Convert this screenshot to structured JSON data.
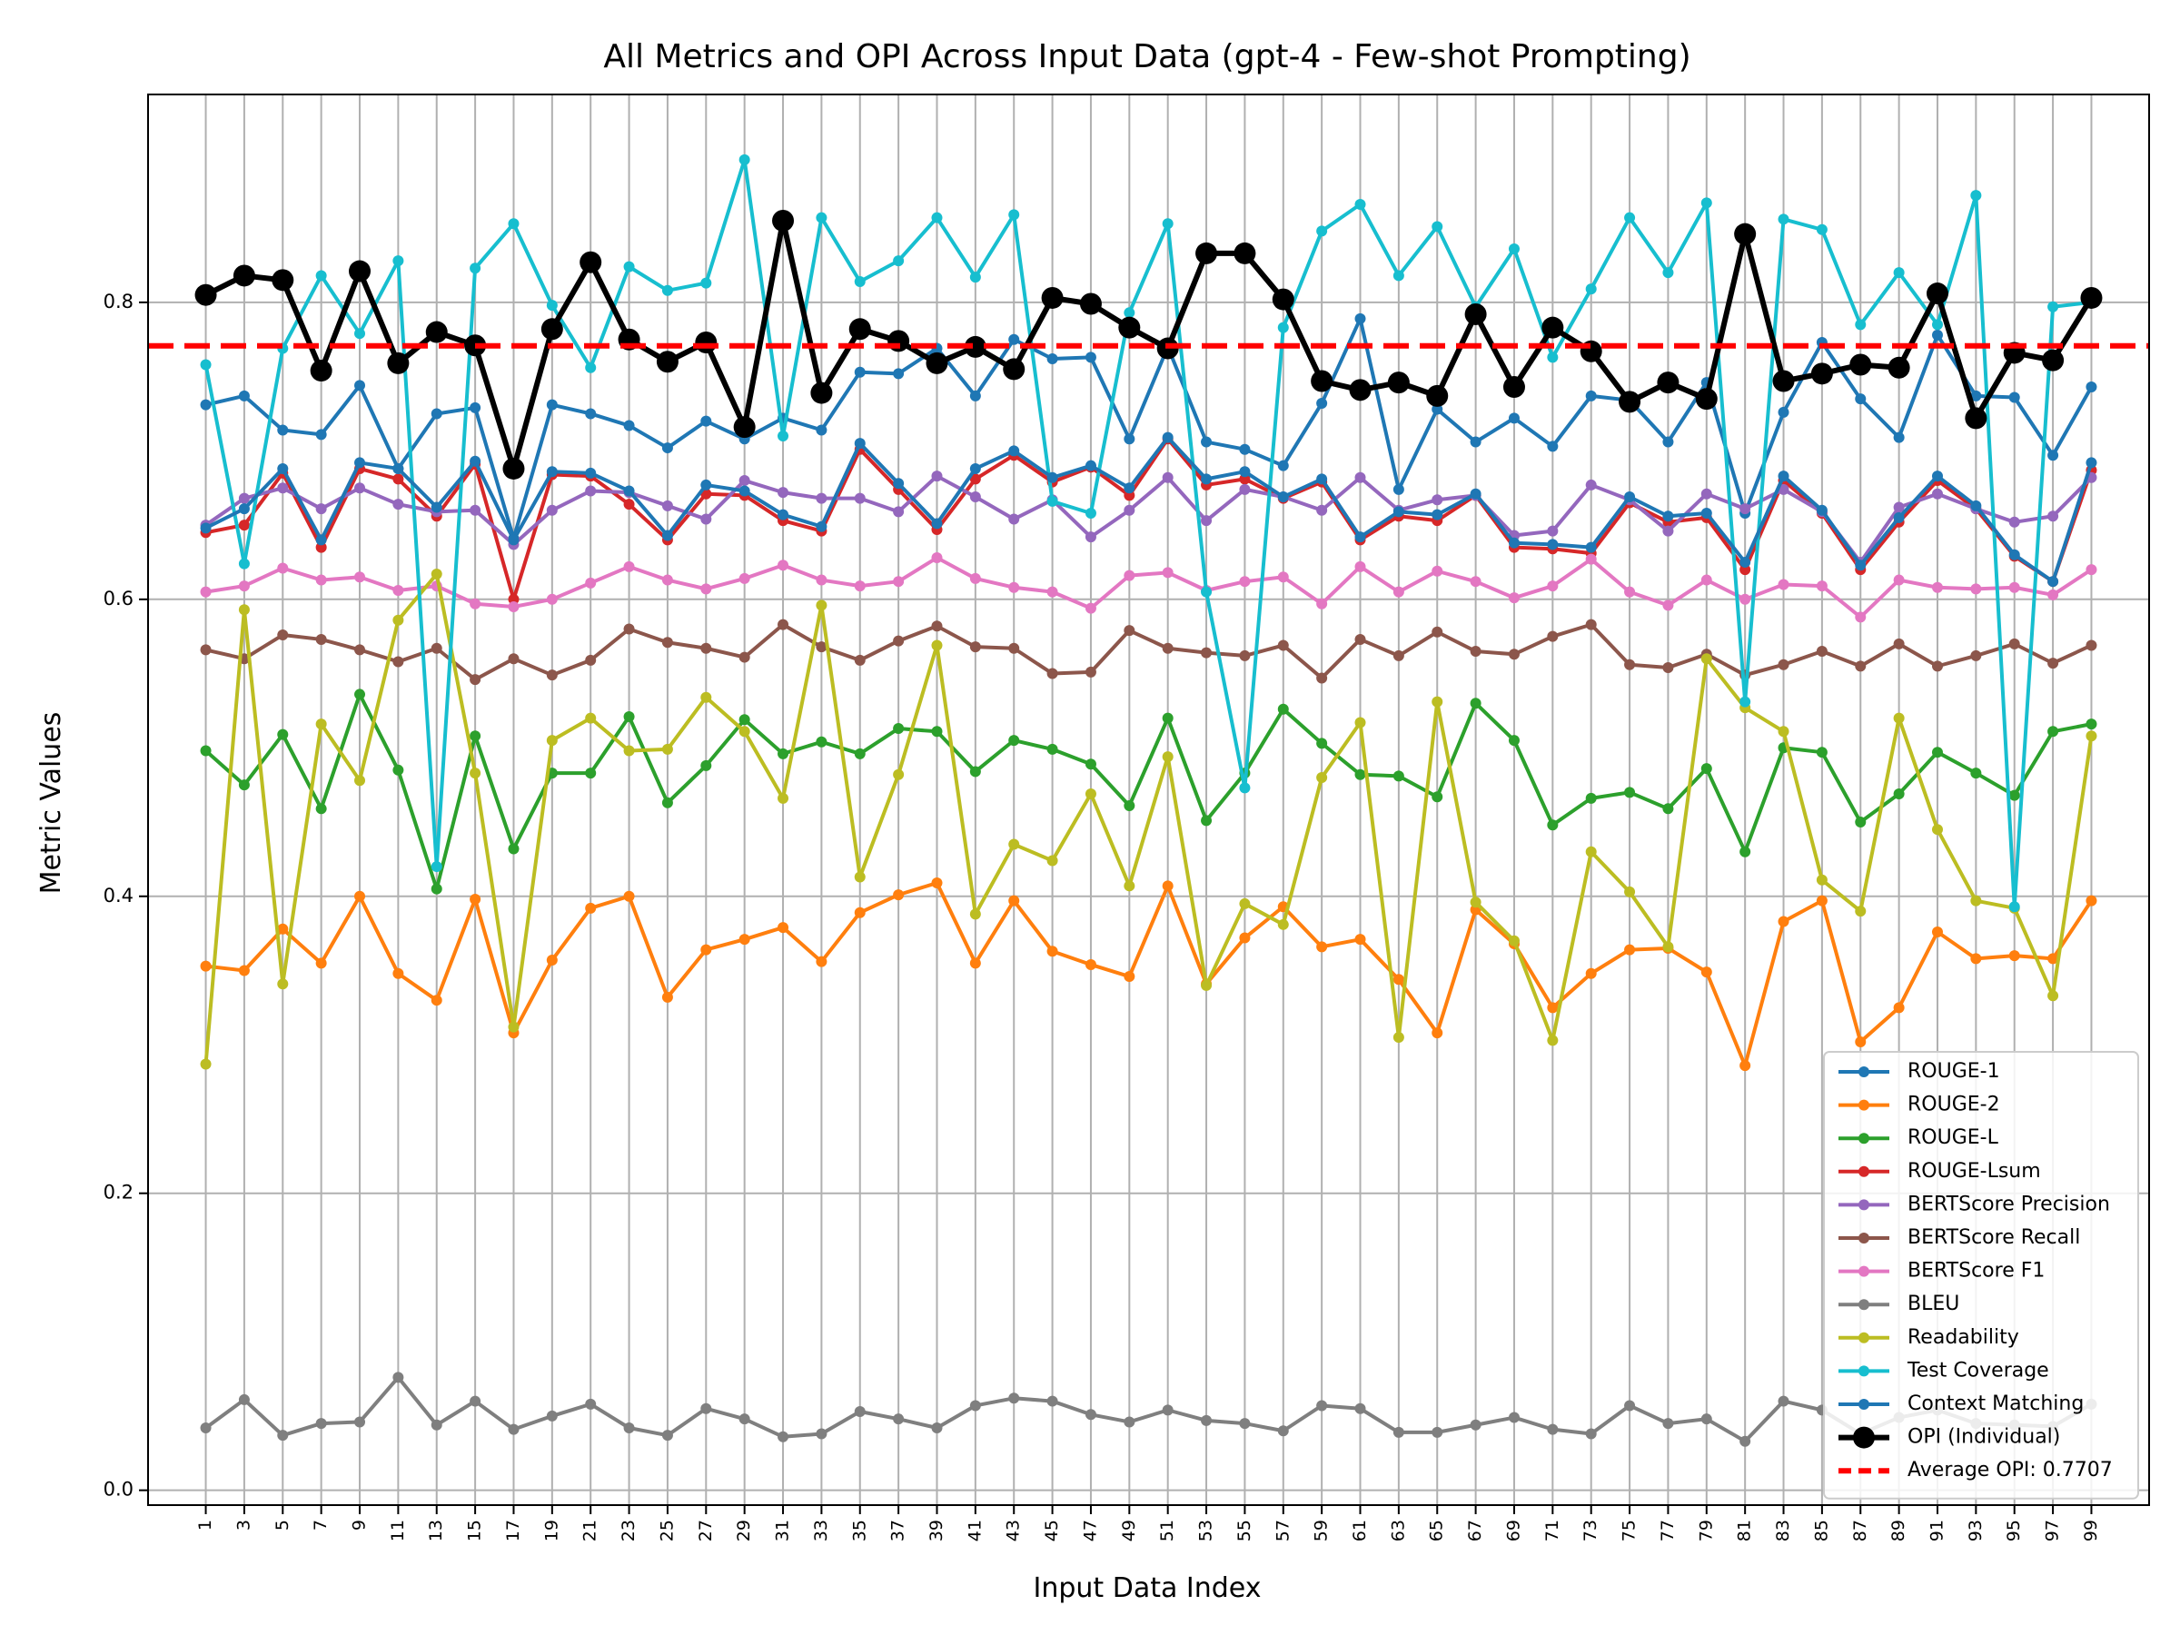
{
  "chart_data": {
    "type": "line",
    "title": "All Metrics and OPI Across Input Data (gpt-4 - Few-shot Prompting)",
    "xlabel": "Input Data Index",
    "ylabel": "Metric Values",
    "xlim": [
      -1.5,
      50.5
    ],
    "ylim": [
      -0.01,
      0.94
    ],
    "yticks": [
      0.0,
      0.2,
      0.4,
      0.6,
      0.8
    ],
    "ytick_labels": [
      "0.0",
      "0.2",
      "0.4",
      "0.6",
      "0.8"
    ],
    "categories": [
      "1",
      "3",
      "5",
      "7",
      "9",
      "11",
      "13",
      "15",
      "17",
      "19",
      "21",
      "23",
      "25",
      "27",
      "29",
      "31",
      "33",
      "35",
      "37",
      "39",
      "41",
      "43",
      "45",
      "47",
      "49",
      "51",
      "53",
      "55",
      "57",
      "59",
      "61",
      "63",
      "65",
      "67",
      "69",
      "71",
      "73",
      "75",
      "77",
      "79",
      "81",
      "83",
      "85",
      "87",
      "89",
      "91",
      "93",
      "95",
      "97",
      "99"
    ],
    "grid": true,
    "legend_position": "lower-right",
    "series": [
      {
        "name": "ROUGE-1",
        "color": "#1f77b4",
        "values": [
          0.731,
          0.737,
          0.714,
          0.711,
          0.744,
          0.688,
          0.725,
          0.729,
          0.641,
          0.731,
          0.725,
          0.717,
          0.702,
          0.72,
          0.708,
          0.722,
          0.714,
          0.753,
          0.752,
          0.769,
          0.737,
          0.775,
          0.762,
          0.763,
          0.708,
          0.77,
          0.706,
          0.701,
          0.69,
          0.732,
          0.789,
          0.674,
          0.728,
          0.706,
          0.722,
          0.703,
          0.737,
          0.734,
          0.706,
          0.746,
          0.658,
          0.726,
          0.773,
          0.735,
          0.709,
          0.778,
          0.737,
          0.736,
          0.697,
          0.743
        ]
      },
      {
        "name": "ROUGE-2",
        "color": "#ff7f0e",
        "values": [
          0.353,
          0.35,
          0.378,
          0.355,
          0.4,
          0.348,
          0.33,
          0.398,
          0.308,
          0.357,
          0.392,
          0.4,
          0.332,
          0.364,
          0.371,
          0.379,
          0.356,
          0.389,
          0.401,
          0.409,
          0.355,
          0.397,
          0.363,
          0.354,
          0.346,
          0.407,
          0.341,
          0.372,
          0.393,
          0.366,
          0.371,
          0.344,
          0.308,
          0.391,
          0.368,
          0.325,
          0.348,
          0.364,
          0.365,
          0.349,
          0.286,
          0.383,
          0.397,
          0.302,
          0.325,
          0.376,
          0.358,
          0.36,
          0.358,
          0.397
        ]
      },
      {
        "name": "ROUGE-L",
        "color": "#2ca02c",
        "values": [
          0.498,
          0.475,
          0.509,
          0.459,
          0.536,
          0.485,
          0.405,
          0.508,
          0.432,
          0.483,
          0.483,
          0.521,
          0.463,
          0.488,
          0.519,
          0.496,
          0.504,
          0.496,
          0.513,
          0.511,
          0.484,
          0.505,
          0.499,
          0.489,
          0.461,
          0.52,
          0.451,
          0.483,
          0.526,
          0.503,
          0.482,
          0.481,
          0.467,
          0.53,
          0.505,
          0.448,
          0.466,
          0.47,
          0.459,
          0.486,
          0.43,
          0.5,
          0.497,
          0.45,
          0.469,
          0.497,
          0.483,
          0.468,
          0.511,
          0.516
        ]
      },
      {
        "name": "ROUGE-Lsum",
        "color": "#d62728",
        "values": [
          0.645,
          0.65,
          0.685,
          0.635,
          0.688,
          0.681,
          0.656,
          0.691,
          0.6,
          0.684,
          0.683,
          0.664,
          0.64,
          0.671,
          0.67,
          0.653,
          0.646,
          0.701,
          0.674,
          0.647,
          0.681,
          0.697,
          0.679,
          0.689,
          0.67,
          0.708,
          0.677,
          0.681,
          0.668,
          0.679,
          0.64,
          0.656,
          0.653,
          0.67,
          0.635,
          0.634,
          0.631,
          0.665,
          0.652,
          0.655,
          0.62,
          0.68,
          0.658,
          0.62,
          0.652,
          0.68,
          0.661,
          0.629,
          0.612,
          0.687
        ]
      },
      {
        "name": "BERTScore Precision",
        "color": "#9467bd",
        "values": [
          0.65,
          0.668,
          0.675,
          0.661,
          0.675,
          0.664,
          0.659,
          0.66,
          0.637,
          0.66,
          0.673,
          0.672,
          0.663,
          0.654,
          0.68,
          0.672,
          0.668,
          0.668,
          0.659,
          0.683,
          0.669,
          0.654,
          0.667,
          0.642,
          0.66,
          0.682,
          0.653,
          0.674,
          0.669,
          0.66,
          0.682,
          0.66,
          0.667,
          0.67,
          0.643,
          0.646,
          0.677,
          0.667,
          0.646,
          0.671,
          0.661,
          0.674,
          0.659,
          0.625,
          0.662,
          0.671,
          0.661,
          0.652,
          0.656,
          0.682
        ]
      },
      {
        "name": "BERTScore Recall",
        "color": "#8c564b",
        "values": [
          0.566,
          0.56,
          0.576,
          0.573,
          0.566,
          0.558,
          0.567,
          0.546,
          0.56,
          0.549,
          0.559,
          0.58,
          0.571,
          0.567,
          0.561,
          0.583,
          0.568,
          0.559,
          0.572,
          0.582,
          0.568,
          0.567,
          0.55,
          0.551,
          0.579,
          0.567,
          0.564,
          0.562,
          0.569,
          0.547,
          0.573,
          0.562,
          0.578,
          0.565,
          0.563,
          0.575,
          0.583,
          0.556,
          0.554,
          0.563,
          0.549,
          0.556,
          0.565,
          0.555,
          0.57,
          0.555,
          0.562,
          0.57,
          0.557,
          0.569
        ]
      },
      {
        "name": "BERTScore F1",
        "color": "#e377c2",
        "values": [
          0.605,
          0.609,
          0.621,
          0.613,
          0.615,
          0.606,
          0.609,
          0.597,
          0.595,
          0.6,
          0.611,
          0.622,
          0.613,
          0.607,
          0.614,
          0.623,
          0.613,
          0.609,
          0.612,
          0.628,
          0.614,
          0.608,
          0.605,
          0.594,
          0.616,
          0.618,
          0.606,
          0.612,
          0.615,
          0.597,
          0.622,
          0.605,
          0.619,
          0.612,
          0.601,
          0.609,
          0.627,
          0.605,
          0.596,
          0.613,
          0.6,
          0.61,
          0.609,
          0.588,
          0.613,
          0.608,
          0.607,
          0.608,
          0.603,
          0.62
        ]
      },
      {
        "name": "BLEU",
        "color": "#7f7f7f",
        "values": [
          0.042,
          0.061,
          0.037,
          0.045,
          0.046,
          0.076,
          0.044,
          0.06,
          0.041,
          0.05,
          0.058,
          0.042,
          0.037,
          0.055,
          0.048,
          0.036,
          0.038,
          0.053,
          0.048,
          0.042,
          0.057,
          0.062,
          0.06,
          0.051,
          0.046,
          0.054,
          0.047,
          0.045,
          0.04,
          0.057,
          0.055,
          0.039,
          0.039,
          0.044,
          0.049,
          0.041,
          0.038,
          0.057,
          0.045,
          0.048,
          0.033,
          0.06,
          0.054,
          0.038,
          0.049,
          0.054,
          0.045,
          0.044,
          0.043,
          0.058
        ]
      },
      {
        "name": "Readability",
        "color": "#bcbd22",
        "values": [
          0.287,
          0.593,
          0.341,
          0.516,
          0.478,
          0.586,
          0.617,
          0.483,
          0.312,
          0.505,
          0.52,
          0.498,
          0.499,
          0.534,
          0.511,
          0.466,
          0.596,
          0.413,
          0.482,
          0.569,
          0.388,
          0.435,
          0.424,
          0.469,
          0.407,
          0.494,
          0.34,
          0.395,
          0.381,
          0.48,
          0.517,
          0.305,
          0.531,
          0.396,
          0.37,
          0.303,
          0.43,
          0.403,
          0.366,
          0.56,
          0.527,
          0.511,
          0.411,
          0.39,
          0.52,
          0.445,
          0.397,
          0.392,
          0.333,
          0.508
        ]
      },
      {
        "name": "Test Coverage",
        "color": "#17becf",
        "values": [
          0.758,
          0.624,
          0.769,
          0.818,
          0.779,
          0.828,
          0.42,
          0.823,
          0.853,
          0.798,
          0.756,
          0.824,
          0.808,
          0.813,
          0.896,
          0.71,
          0.857,
          0.814,
          0.828,
          0.857,
          0.817,
          0.859,
          0.666,
          0.658,
          0.793,
          0.853,
          0.605,
          0.473,
          0.783,
          0.848,
          0.866,
          0.818,
          0.851,
          0.797,
          0.836,
          0.763,
          0.809,
          0.857,
          0.82,
          0.867,
          0.531,
          0.856,
          0.849,
          0.785,
          0.82,
          0.785,
          0.872,
          0.393,
          0.797,
          0.8
        ]
      },
      {
        "name": "Context Matching",
        "color": "#1f77b4",
        "values": [
          0.648,
          0.661,
          0.688,
          0.64,
          0.692,
          0.688,
          0.662,
          0.693,
          0.64,
          0.686,
          0.685,
          0.673,
          0.643,
          0.677,
          0.673,
          0.657,
          0.649,
          0.705,
          0.678,
          0.651,
          0.688,
          0.7,
          0.682,
          0.69,
          0.675,
          0.709,
          0.681,
          0.686,
          0.669,
          0.681,
          0.642,
          0.659,
          0.657,
          0.671,
          0.638,
          0.637,
          0.635,
          0.669,
          0.656,
          0.658,
          0.625,
          0.683,
          0.66,
          0.623,
          0.655,
          0.683,
          0.663,
          0.63,
          0.612,
          0.692
        ]
      },
      {
        "name": "OPI (Individual)",
        "color": "#000000",
        "values": [
          0.805,
          0.818,
          0.815,
          0.754,
          0.821,
          0.759,
          0.78,
          0.771,
          0.688,
          0.782,
          0.827,
          0.775,
          0.76,
          0.773,
          0.716,
          0.855,
          0.739,
          0.782,
          0.774,
          0.759,
          0.77,
          0.755,
          0.803,
          0.799,
          0.783,
          0.769,
          0.833,
          0.833,
          0.802,
          0.747,
          0.741,
          0.746,
          0.737,
          0.792,
          0.743,
          0.783,
          0.767,
          0.733,
          0.746,
          0.735,
          0.846,
          0.747,
          0.752,
          0.758,
          0.756,
          0.806,
          0.722,
          0.766,
          0.761,
          0.803
        ]
      }
    ],
    "average_opi": {
      "value": 0.7707,
      "label": "Average OPI: 0.7707",
      "color": "#ff0000"
    }
  }
}
